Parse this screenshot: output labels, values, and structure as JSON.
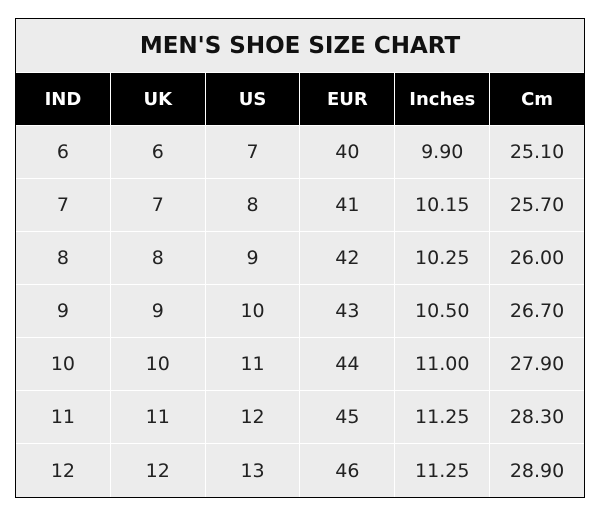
{
  "title": "MEN'S SHOE SIZE CHART",
  "headers": [
    "IND",
    "UK",
    "US",
    "EUR",
    "Inches",
    "Cm"
  ],
  "rows": [
    [
      "6",
      "6",
      "7",
      "40",
      "9.90",
      "25.10"
    ],
    [
      "7",
      "7",
      "8",
      "41",
      "10.15",
      "25.70"
    ],
    [
      "8",
      "8",
      "9",
      "42",
      "10.25",
      "26.00"
    ],
    [
      "9",
      "9",
      "10",
      "43",
      "10.50",
      "26.70"
    ],
    [
      "10",
      "10",
      "11",
      "44",
      "11.00",
      "27.90"
    ],
    [
      "11",
      "11",
      "12",
      "45",
      "11.25",
      "28.30"
    ],
    [
      "12",
      "12",
      "13",
      "46",
      "11.25",
      "28.90"
    ]
  ],
  "colors": {
    "header_bg": "#000000",
    "body_bg": "#ececec",
    "grid": "#ffffff"
  }
}
